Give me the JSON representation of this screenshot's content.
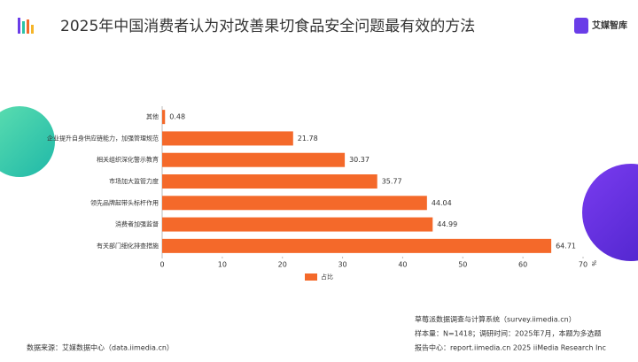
{
  "chart_data": {
    "type": "bar",
    "orientation": "horizontal",
    "title": "2025年中国消费者认为对改善果切食品安全问题最有效的方法",
    "categories": [
      "其他",
      "企业提升自身供应链能力，加强管理规范",
      "相关组织深化警示教育",
      "市场加大监管力度",
      "领先品牌起带头标杆作用",
      "消费者加强监督",
      "有关部门细化排查措施"
    ],
    "series": [
      {
        "name": "占比",
        "color": "#f4692a",
        "values": [
          0.48,
          21.78,
          30.37,
          35.77,
          44.04,
          44.99,
          64.71
        ]
      }
    ],
    "xlim": [
      0,
      70
    ],
    "xticks": [
      0,
      10,
      20,
      30,
      40,
      50,
      60,
      70
    ],
    "x_label": "%",
    "legend": "bottom"
  },
  "logo": "艾媒智库",
  "source": "数据来源：艾媒数据中心（data.iimedia.cn）",
  "notes": [
    "草莓派数据调查与计算系统（survey.iimedia.cn）",
    "样本量：N=1418；调研时间：2025年7月，本题为多选题",
    "报告中心：report.iimedia.cn   2025 iiMedia Research Inc"
  ]
}
